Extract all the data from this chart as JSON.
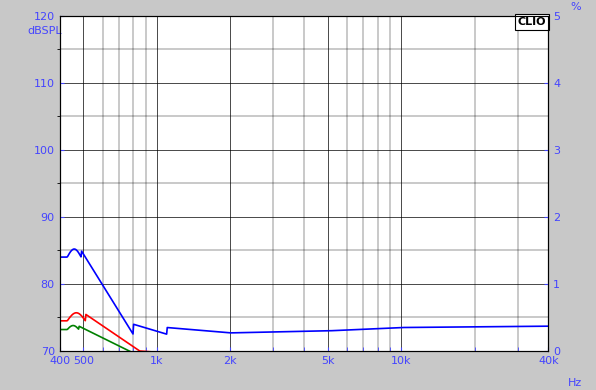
{
  "title": "",
  "ylabel_left": "dBSPL",
  "ylabel_right": "%",
  "xlabel": "Hz",
  "clio_label": "CLIO",
  "xlim": [
    400,
    40000
  ],
  "ylim_left": [
    70,
    120
  ],
  "ylim_right": [
    0,
    5
  ],
  "yticks_left": [
    70,
    80,
    90,
    100,
    110,
    120
  ],
  "yticks_right": [
    0,
    1,
    2,
    3,
    4,
    5
  ],
  "xticklabels": [
    "400",
    "500",
    "1k",
    "2k",
    "5k",
    "10k",
    "40k"
  ],
  "xtick_vals": [
    400,
    500,
    1000,
    2000,
    5000,
    10000,
    40000
  ],
  "bg_color": "#c8c8c8",
  "plot_bg_color": "#ffffff",
  "grid_color": "#000000",
  "axis_color": "#000000",
  "label_color": "#4444ff",
  "tick_color": "#4444ff",
  "right_label_color": "#4444ff",
  "hz_label_color": "#4444ff",
  "blue_color": "#0000ff",
  "red_color": "#ff0000",
  "green_color": "#008000",
  "line_width": 1.2
}
